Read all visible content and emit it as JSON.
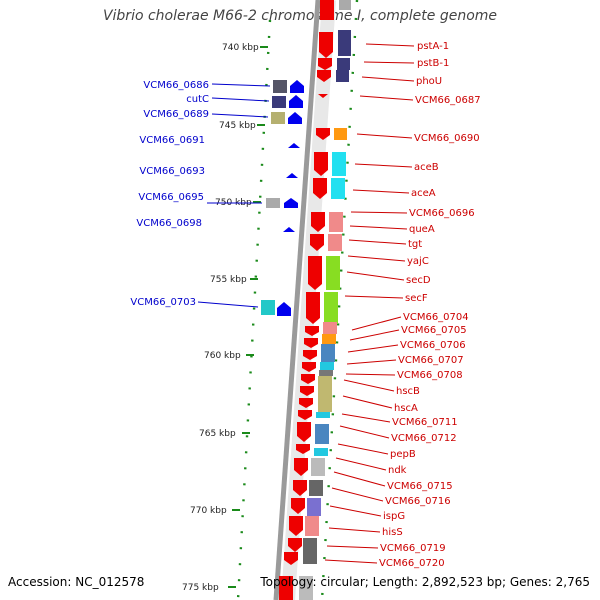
{
  "title": "Vibrio cholerae M66-2 chromosome I, complete genome",
  "footer": {
    "accession": "Accession: NC_012578",
    "topology": "Topology: circular; Length: 2,892,523 bp; Genes: 2,765"
  },
  "colors": {
    "left_label": "#0000cc",
    "right_label": "#cc0000",
    "scale_tick": "#1a8a1a",
    "strand_arrow_left": "#0000ee",
    "strand_arrow_right": "#ee0000"
  },
  "scale_labels": [
    "740 kbp",
    "745 kbp",
    "750 kbp",
    "755 kbp",
    "760 kbp",
    "765 kbp",
    "770 kbp",
    "775 kbp"
  ],
  "left_labels": [
    "VCM66_0686",
    "cutC",
    "VCM66_0689",
    "VCM66_0691",
    "VCM66_0693",
    "VCM66_0695",
    "VCM66_0698",
    "VCM66_0703"
  ],
  "right_labels": [
    "pstA-1",
    "pstB-1",
    "phoU",
    "VCM66_0687",
    "VCM66_0690",
    "aceB",
    "aceA",
    "VCM66_0696",
    "queA",
    "tgt",
    "yajC",
    "secD",
    "secF",
    "VCM66_0704",
    "VCM66_0705",
    "VCM66_0706",
    "VCM66_0707",
    "VCM66_0708",
    "hscB",
    "hscA",
    "VCM66_0711",
    "VCM66_0712",
    "pepB",
    "ndk",
    "VCM66_0715",
    "VCM66_0716",
    "ispG",
    "hisS",
    "VCM66_0719",
    "VCM66_0720"
  ]
}
